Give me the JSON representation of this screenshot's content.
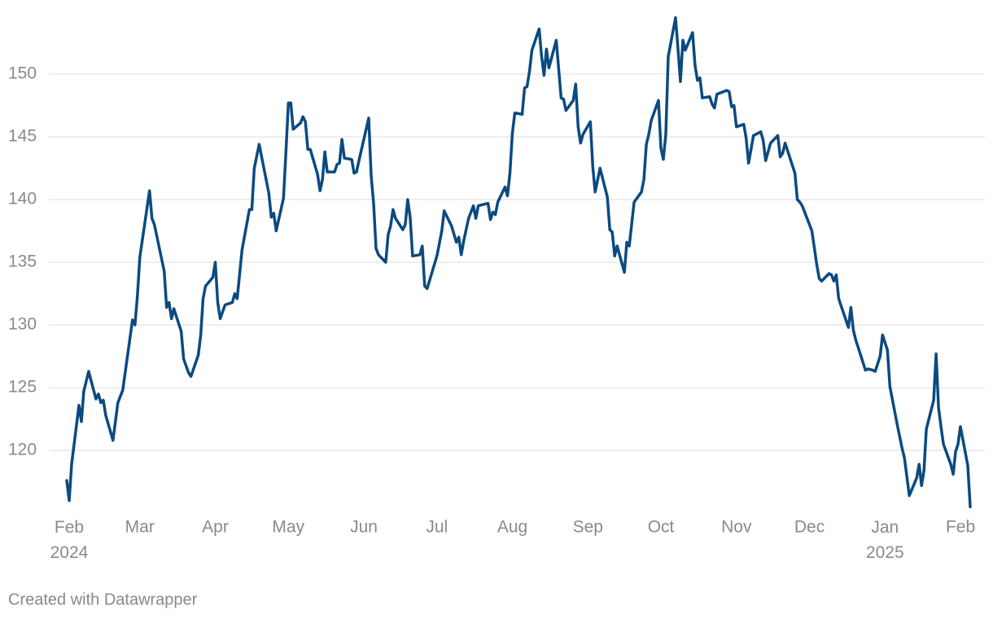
{
  "chart_data": {
    "type": "line",
    "footer": "Created with Datawrapper",
    "color": "#0b4a80",
    "grid": true,
    "x": [
      -1,
      0,
      1,
      4,
      5,
      6,
      8,
      11,
      12,
      13,
      14,
      15,
      18,
      20,
      22,
      26,
      27,
      28,
      29,
      33,
      34,
      35,
      39,
      40,
      41,
      42,
      43,
      46,
      47,
      49,
      50,
      53,
      54,
      55,
      56,
      59,
      60,
      61,
      62,
      64,
      67,
      68,
      69,
      71,
      74,
      75,
      76,
      78,
      82,
      83,
      84,
      85,
      88,
      89,
      90,
      91,
      92,
      95,
      96,
      97,
      98,
      99,
      102,
      103,
      104,
      105,
      106,
      109,
      110,
      111,
      112,
      113,
      116,
      117,
      118,
      119,
      123,
      124,
      125,
      126,
      127,
      130,
      131,
      132,
      133,
      134,
      135,
      137,
      138,
      139,
      140,
      141,
      144,
      145,
      146,
      147,
      151,
      153,
      154,
      157,
      159,
      160,
      161,
      162,
      164,
      166,
      167,
      168,
      172,
      173,
      174,
      175,
      176,
      179,
      180,
      181,
      182,
      183,
      186,
      187,
      188,
      189,
      190,
      193,
      194,
      195,
      196,
      197,
      200,
      202,
      203,
      204,
      207,
      208,
      209,
      210,
      211,
      214,
      215,
      216,
      218,
      221,
      222,
      223,
      224,
      225,
      228,
      229,
      230,
      232,
      235,
      236,
      237,
      238,
      239,
      242,
      243,
      244,
      245,
      246,
      249,
      250,
      251,
      252,
      253,
      256,
      257,
      258,
      259,
      260,
      263,
      264,
      265,
      266,
      270,
      271,
      272,
      273,
      274,
      277,
      278,
      279,
      281,
      284,
      285,
      286,
      288,
      291,
      292,
      293,
      294,
      298,
      299,
      300,
      301,
      305,
      307,
      308,
      309,
      312,
      313,
      314,
      315,
      316,
      320,
      321,
      322,
      323,
      324,
      327,
      328,
      330,
      331,
      333,
      334,
      335,
      336,
      337,
      340,
      342,
      343,
      345,
      348,
      349,
      350,
      351,
      352,
      355,
      356,
      357,
      358,
      359,
      362,
      363,
      364,
      365,
      366,
      369,
      370
    ],
    "values": [
      117.6,
      116.0,
      118.9,
      123.6,
      122.3,
      124.7,
      126.3,
      124.1,
      124.5,
      123.8,
      124.0,
      122.8,
      120.8,
      123.8,
      124.8,
      130.4,
      130.0,
      132.3,
      135.4,
      140.7,
      138.5,
      138.0,
      134.3,
      131.4,
      131.8,
      130.5,
      131.3,
      129.5,
      127.3,
      126.2,
      125.9,
      127.6,
      129.2,
      132.1,
      133.1,
      133.8,
      135.0,
      131.8,
      130.5,
      131.6,
      131.8,
      132.5,
      132.1,
      136.0,
      139.2,
      139.2,
      142.5,
      144.4,
      140.5,
      138.6,
      138.9,
      137.5,
      140.1,
      143.8,
      147.7,
      147.7,
      145.6,
      146.1,
      146.6,
      146.2,
      144.0,
      144.0,
      142.0,
      140.7,
      141.6,
      143.8,
      142.2,
      142.2,
      142.8,
      142.9,
      144.8,
      143.3,
      143.2,
      142.1,
      142.2,
      143.1,
      146.5,
      141.9,
      139.7,
      136.1,
      135.6,
      135.0,
      137.2,
      137.9,
      139.2,
      138.5,
      138.2,
      137.6,
      138.0,
      140.0,
      138.6,
      135.5,
      135.6,
      136.3,
      133.1,
      132.9,
      135.5,
      137.5,
      139.1,
      137.9,
      136.6,
      137.0,
      135.6,
      136.7,
      138.5,
      139.5,
      138.5,
      139.5,
      139.7,
      138.4,
      139.0,
      138.8,
      139.8,
      141.0,
      140.3,
      142.1,
      145.3,
      146.9,
      146.8,
      148.9,
      149.0,
      150.2,
      151.9,
      153.6,
      151.4,
      149.9,
      152.0,
      150.5,
      152.7,
      148.1,
      148.0,
      147.1,
      147.9,
      149.2,
      145.8,
      144.5,
      145.2,
      146.2,
      142.6,
      140.6,
      142.5,
      140.2,
      137.6,
      137.4,
      135.5,
      136.3,
      134.2,
      136.6,
      136.3,
      139.8,
      140.6,
      141.6,
      144.4,
      145.2,
      146.3,
      147.9,
      144.1,
      143.2,
      145.2,
      151.4,
      154.5,
      152.0,
      149.4,
      152.7,
      151.9,
      153.3,
      150.7,
      149.5,
      149.7,
      148.1,
      148.2,
      147.6,
      147.3,
      148.4,
      148.7,
      148.6,
      147.4,
      147.5,
      145.8,
      146.0,
      144.9,
      142.9,
      145.1,
      145.4,
      144.7,
      143.1,
      144.5,
      145.1,
      143.4,
      143.7,
      144.5,
      142.1,
      140.0,
      139.8,
      139.5,
      137.5,
      134.8,
      133.7,
      133.5,
      134.1,
      134.0,
      133.5,
      134.0,
      132.1,
      129.8,
      131.4,
      129.6,
      128.8,
      128.2,
      126.4,
      126.5,
      126.4,
      126.3,
      127.5,
      129.2,
      128.6,
      128.0,
      125.1,
      122.1,
      120.2,
      119.4,
      116.4,
      117.8,
      118.9,
      117.2,
      118.4,
      121.7,
      124.0,
      127.7,
      123.4,
      121.9,
      120.5,
      118.9,
      118.1,
      119.9,
      120.5,
      121.9,
      118.8,
      115.5
    ],
    "xlim": [
      -1,
      370
    ],
    "xticks": [
      {
        "value": 0,
        "label": "Feb 2024"
      },
      {
        "value": 29,
        "label": "Mar"
      },
      {
        "value": 60,
        "label": "Apr"
      },
      {
        "value": 90,
        "label": "May"
      },
      {
        "value": 121,
        "label": "Jun"
      },
      {
        "value": 151,
        "label": "Jul"
      },
      {
        "value": 182,
        "label": "Aug"
      },
      {
        "value": 213,
        "label": "Sep"
      },
      {
        "value": 243,
        "label": "Oct"
      },
      {
        "value": 274,
        "label": "Nov"
      },
      {
        "value": 304,
        "label": "Dec"
      },
      {
        "value": 335,
        "label": "Jan 2025"
      },
      {
        "value": 366,
        "label": "Feb"
      }
    ],
    "ylim": [
      115.1,
      154.9
    ],
    "yticks": [
      120,
      125,
      130,
      135,
      140,
      145,
      150
    ]
  }
}
